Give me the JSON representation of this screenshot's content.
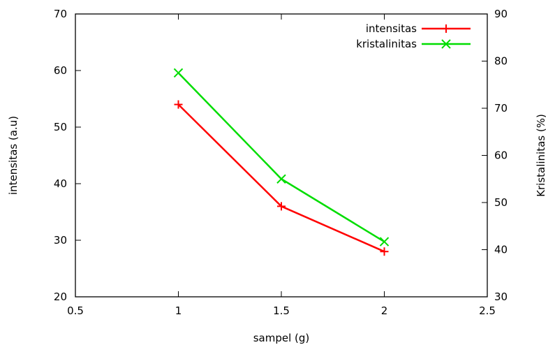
{
  "chart_data": {
    "type": "line",
    "title": "",
    "xlabel": "sampel (g)",
    "ylabel": "intensitas (a.u)",
    "y2label": "Kristalinitas (%)",
    "xlim": [
      0.5,
      2.5
    ],
    "ylim": [
      20,
      70
    ],
    "y2lim": [
      30,
      90
    ],
    "xticks": [
      "0.5",
      "1",
      "1.5",
      "2",
      "2.5"
    ],
    "yticks": [
      "20",
      "30",
      "40",
      "50",
      "60",
      "70"
    ],
    "y2ticks": [
      "30",
      "40",
      "50",
      "60",
      "70",
      "80",
      "90"
    ],
    "grid": false,
    "legend_position": "top-right",
    "series": [
      {
        "name": "intensitas",
        "axis": "left",
        "color": "#ff0000",
        "marker": "plus",
        "x": [
          1,
          1.5,
          2
        ],
        "values": [
          54,
          36,
          28
        ]
      },
      {
        "name": "kristalinitas",
        "axis": "right",
        "color": "#00dd00",
        "marker": "cross",
        "x": [
          1,
          1.5,
          2
        ],
        "values": [
          77.5,
          55,
          41.7
        ]
      }
    ]
  }
}
